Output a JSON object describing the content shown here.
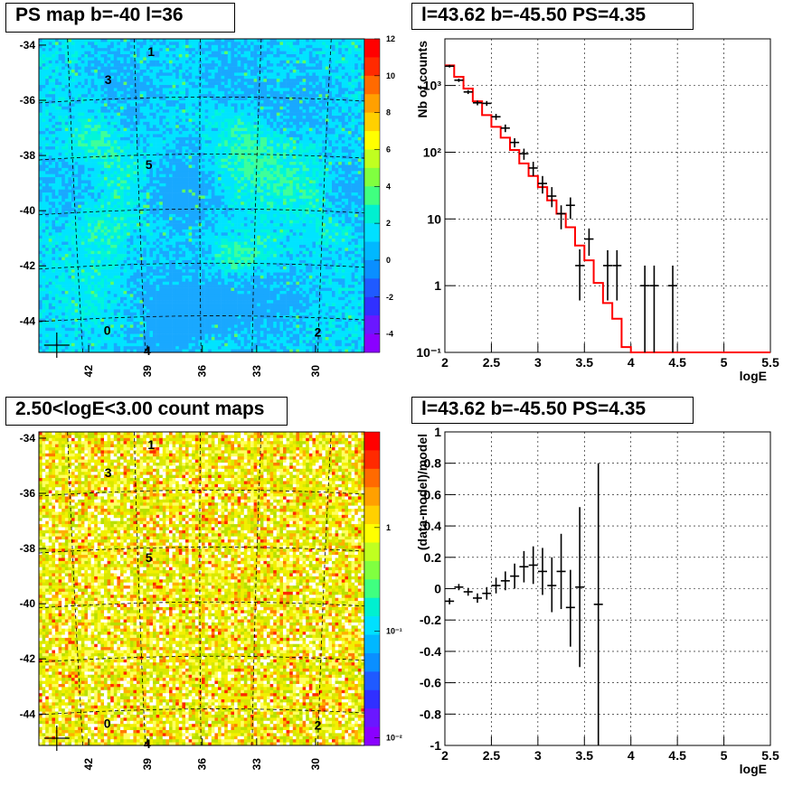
{
  "chart_data": [
    {
      "type": "heatmap",
      "title": "PS map b=-40 l=36",
      "y_ticks": [
        "-34",
        "-36",
        "-38",
        "-40",
        "-42",
        "-44"
      ],
      "x_ticks": [
        "42",
        "39",
        "36",
        "33",
        "30"
      ],
      "colorbar_ticks": [
        "12",
        "10",
        "8",
        "6",
        "4",
        "2",
        "0",
        "-2",
        "-4"
      ],
      "colorbar_range": [
        -5,
        12
      ],
      "grid": true,
      "sources": [
        "0",
        "1",
        "2",
        "3",
        "4",
        "5"
      ]
    },
    {
      "type": "line",
      "title": "l=43.62 b=-45.50 PS=4.35",
      "xlabel": "logE",
      "ylabel": "Nb of counts",
      "xlim": [
        2,
        5.5
      ],
      "ylim": [
        0.1,
        5000
      ],
      "log_y": true,
      "grid": true,
      "x_ticks": [
        "2",
        "2.5",
        "3",
        "3.5",
        "4",
        "4.5",
        "5",
        "5.5"
      ],
      "y_ticks": [
        "10⁻¹",
        "1",
        "10",
        "10²",
        "10³"
      ],
      "model_color": "#ff0000",
      "model_bin_edges": [
        2,
        2.1,
        2.2,
        2.3,
        2.4,
        2.5,
        2.6,
        2.7,
        2.8,
        2.9,
        3,
        3.1,
        3.2,
        3.3,
        3.4,
        3.5,
        3.6,
        3.7,
        3.8,
        3.9,
        4,
        4.1,
        4.2,
        4.3,
        4.4,
        4.5,
        4.6,
        4.7,
        4.8,
        4.9,
        5,
        5.1,
        5.2,
        5.3,
        5.4,
        5.5
      ],
      "model_values": [
        2000,
        1350,
        900,
        580,
        360,
        240,
        165,
        108,
        68,
        44,
        30,
        19,
        12,
        7.5,
        4.0,
        2.4,
        1.1,
        0.55,
        0.32,
        0.12,
        0.1,
        0.1,
        0.1,
        0.1,
        0.1,
        0.1,
        0.1,
        0.1,
        0.1,
        0.1,
        0.1,
        0.1,
        0.1,
        0.1,
        0.1
      ],
      "data_points": [
        {
          "x": 2.05,
          "y": 1950,
          "lo": 1860,
          "hi": 2040
        },
        {
          "x": 2.15,
          "y": 1200,
          "lo": 1130,
          "hi": 1270
        },
        {
          "x": 2.25,
          "y": 800,
          "lo": 745,
          "hi": 855
        },
        {
          "x": 2.35,
          "y": 550,
          "lo": 505,
          "hi": 595
        },
        {
          "x": 2.45,
          "y": 540,
          "lo": 495,
          "hi": 585
        },
        {
          "x": 2.55,
          "y": 340,
          "lo": 305,
          "hi": 375
        },
        {
          "x": 2.65,
          "y": 230,
          "lo": 200,
          "hi": 260
        },
        {
          "x": 2.75,
          "y": 140,
          "lo": 118,
          "hi": 162
        },
        {
          "x": 2.85,
          "y": 95,
          "lo": 77,
          "hi": 113
        },
        {
          "x": 2.95,
          "y": 58,
          "lo": 44,
          "hi": 72
        },
        {
          "x": 3.05,
          "y": 34,
          "lo": 24,
          "hi": 44
        },
        {
          "x": 3.15,
          "y": 22,
          "lo": 15,
          "hi": 30
        },
        {
          "x": 3.25,
          "y": 12,
          "lo": 7,
          "hi": 16
        },
        {
          "x": 3.35,
          "y": 16,
          "lo": 10,
          "hi": 21
        },
        {
          "x": 3.45,
          "y": 2,
          "lo": 0.6,
          "hi": 3.5
        },
        {
          "x": 3.55,
          "y": 5,
          "lo": 2.8,
          "hi": 7.2
        },
        {
          "x": 3.75,
          "y": 2,
          "lo": 0.6,
          "hi": 3.4
        },
        {
          "x": 3.85,
          "y": 2,
          "lo": 0.6,
          "hi": 3.4
        },
        {
          "x": 4.15,
          "y": 1,
          "lo": 0.1,
          "hi": 2
        },
        {
          "x": 4.25,
          "y": 1,
          "lo": 0.1,
          "hi": 2
        },
        {
          "x": 4.45,
          "y": 1,
          "lo": 0.1,
          "hi": 2
        }
      ]
    },
    {
      "type": "heatmap",
      "title": "2.50<logE<3.00 count maps",
      "y_ticks": [
        "-34",
        "-36",
        "-38",
        "-40",
        "-42",
        "-44"
      ],
      "x_ticks": [
        "42",
        "39",
        "36",
        "33",
        "30"
      ],
      "colorbar_ticks": [
        "1",
        "10⁻¹",
        "10⁻²"
      ],
      "log_colorbar": true,
      "grid": true,
      "sources": [
        "0",
        "1",
        "2",
        "3",
        "4",
        "5"
      ]
    },
    {
      "type": "scatter",
      "title": "l=43.62 b=-45.50 PS=4.35",
      "xlabel": "logE",
      "ylabel": "(data-model)/model",
      "xlim": [
        2,
        5.5
      ],
      "ylim": [
        -1,
        1
      ],
      "grid": true,
      "x_ticks": [
        "2",
        "2.5",
        "3",
        "3.5",
        "4",
        "4.5",
        "5",
        "5.5"
      ],
      "y_ticks": [
        "1",
        "0.8",
        "0.6",
        "0.4",
        "0.2",
        "0",
        "-0.2",
        "-0.4",
        "-0.6",
        "-0.8",
        "-1"
      ],
      "data_points": [
        {
          "x": 2.05,
          "y": -0.08,
          "lo": -0.1,
          "hi": -0.06
        },
        {
          "x": 2.15,
          "y": 0.01,
          "lo": -0.01,
          "hi": 0.03
        },
        {
          "x": 2.25,
          "y": -0.02,
          "lo": -0.045,
          "hi": 0.005
        },
        {
          "x": 2.35,
          "y": -0.06,
          "lo": -0.09,
          "hi": -0.03
        },
        {
          "x": 2.45,
          "y": -0.03,
          "lo": -0.07,
          "hi": 0.01
        },
        {
          "x": 2.55,
          "y": 0.02,
          "lo": -0.03,
          "hi": 0.07
        },
        {
          "x": 2.65,
          "y": 0.05,
          "lo": -0.01,
          "hi": 0.11
        },
        {
          "x": 2.75,
          "y": 0.08,
          "lo": 0.0,
          "hi": 0.16
        },
        {
          "x": 2.85,
          "y": 0.14,
          "lo": 0.04,
          "hi": 0.24
        },
        {
          "x": 2.95,
          "y": 0.15,
          "lo": 0.03,
          "hi": 0.27
        },
        {
          "x": 3.05,
          "y": 0.11,
          "lo": -0.04,
          "hi": 0.26
        },
        {
          "x": 3.15,
          "y": 0.02,
          "lo": -0.15,
          "hi": 0.2
        },
        {
          "x": 3.25,
          "y": 0.11,
          "lo": -0.13,
          "hi": 0.35
        },
        {
          "x": 3.35,
          "y": -0.12,
          "lo": -0.37,
          "hi": 0.12
        },
        {
          "x": 3.45,
          "y": 0.01,
          "lo": -0.5,
          "hi": 0.52
        },
        {
          "x": 3.65,
          "y": -0.1,
          "lo": -1.0,
          "hi": 0.8
        }
      ]
    }
  ]
}
